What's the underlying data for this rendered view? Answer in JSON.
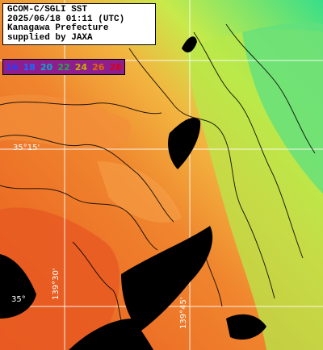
{
  "info_box": {
    "lines": [
      "GCOM-C/SGLI SST",
      "2025/06/18 01:11 (UTC)",
      "Kanagawa Prefecture",
      "supplied by JAXA"
    ]
  },
  "legend": {
    "labels": [
      "16",
      "18",
      "20",
      "22",
      "24",
      "26",
      "28"
    ],
    "colors": [
      "#6a1fd6",
      "#1f78e8",
      "#1fc8c8",
      "#6fe08a",
      "#d8e23c",
      "#f09a2a",
      "#e8322a"
    ],
    "text_colors": [
      "#2a3bff",
      "#1a6bff",
      "#0aa8c8",
      "#22a84a",
      "#c8b200",
      "#e06a00",
      "#d8001a"
    ],
    "background": "#8e1e8e"
  },
  "grid_labels": {
    "lat_35_15": "35°15'",
    "lat_35_00": "35°",
    "lon_139_30": "139°30'",
    "lon_139_45": "139°45'"
  },
  "colors": {
    "land": "#000000",
    "sea_warm": "#f07a2a",
    "sea_hot": "#e04a1a",
    "sea_cool": "#b8f04a",
    "sea_cold": "#48e080",
    "graticule": "#ffffff",
    "contour": "#000000"
  }
}
